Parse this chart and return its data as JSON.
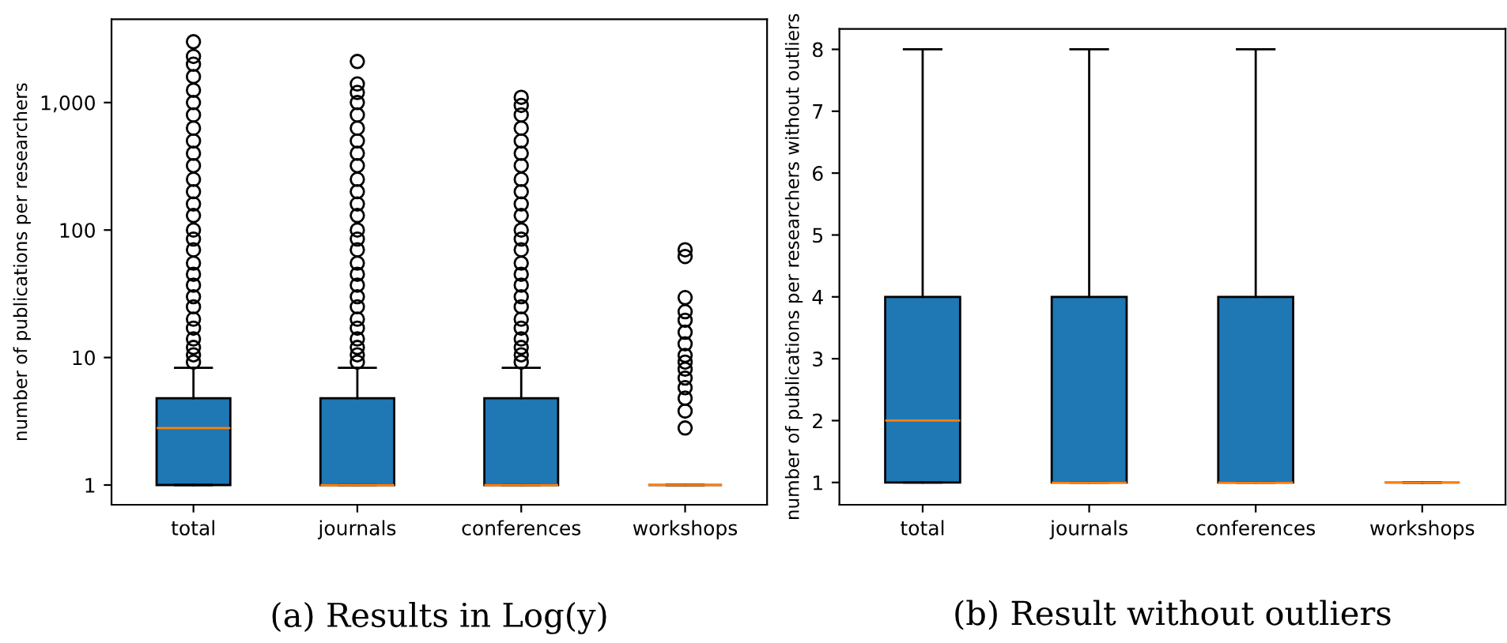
{
  "chart_data": [
    {
      "type": "box",
      "categories": [
        "total",
        "journals",
        "conferences",
        "workshops"
      ],
      "ylabel": "number of publications per researchers",
      "log": "y",
      "ylim": [
        0.7,
        4500
      ],
      "yticks": [
        1,
        10,
        100,
        {
          "value": 1000,
          "label": "1,000"
        }
      ],
      "grid": false,
      "annotations": [
        "(a) Results in Log(y)"
      ],
      "series": [
        {
          "color": "#1f77b4",
          "boxes": [
            {
              "low": 1,
              "q1": 1,
              "median": 2.8,
              "q3": 4.8,
              "high": 8.3,
              "outliers": [
                9.2,
                10.5,
                12,
                14,
                17,
                20,
                25,
                30,
                37,
                45,
                55,
                70,
                85,
                100,
                130,
                160,
                200,
                250,
                320,
                400,
                500,
                630,
                800,
                1000,
                1250,
                1600,
                2000,
                2300,
                3000
              ]
            },
            {
              "low": 1,
              "q1": 1,
              "median": 1,
              "q3": 4.8,
              "high": 8.3,
              "outliers": [
                9.2,
                10.5,
                12,
                14,
                17,
                20,
                25,
                30,
                37,
                45,
                55,
                70,
                85,
                100,
                130,
                160,
                200,
                250,
                320,
                400,
                500,
                630,
                800,
                1000,
                1200,
                1400,
                2100
              ]
            },
            {
              "low": 1,
              "q1": 1,
              "median": 1,
              "q3": 4.8,
              "high": 8.3,
              "outliers": [
                9.2,
                10.5,
                12,
                14,
                17,
                20,
                25,
                30,
                37,
                45,
                55,
                70,
                85,
                100,
                130,
                160,
                200,
                250,
                320,
                400,
                500,
                630,
                800,
                950,
                1100
              ]
            },
            {
              "low": 1,
              "q1": 1,
              "median": 1,
              "q3": 1,
              "high": 1,
              "outliers": [
                2.8,
                3.8,
                4.8,
                5.8,
                6.9,
                8.1,
                9.2,
                10.4,
                12.8,
                15.8,
                19.6,
                22.9,
                29.5,
                62,
                70
              ]
            }
          ]
        }
      ]
    },
    {
      "type": "box",
      "categories": [
        "total",
        "journals",
        "conferences",
        "workshops"
      ],
      "ylabel": "number of publications per researchers without outliers",
      "ylim": [
        0.64,
        8.33
      ],
      "yticks": [
        1,
        2,
        3,
        4,
        5,
        6,
        7,
        8
      ],
      "grid": false,
      "annotations": [
        "(b) Result without outliers"
      ],
      "series": [
        {
          "color": "#1f77b4",
          "boxes": [
            {
              "low": 1,
              "q1": 1,
              "median": 2,
              "q3": 4,
              "high": 8
            },
            {
              "low": 1,
              "q1": 1,
              "median": 1,
              "q3": 4,
              "high": 8
            },
            {
              "low": 1,
              "q1": 1,
              "median": 1,
              "q3": 4,
              "high": 8
            },
            {
              "low": 1,
              "q1": 1,
              "median": 1,
              "q3": 1,
              "high": 1
            }
          ]
        }
      ]
    }
  ]
}
